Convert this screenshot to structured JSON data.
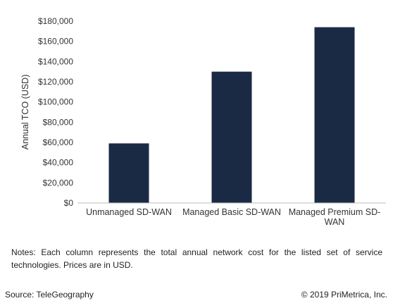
{
  "chart_data": {
    "type": "bar",
    "title": "",
    "xlabel": "",
    "ylabel": "Annual TCO (USD)",
    "ylim": [
      0,
      180000
    ],
    "yticks": [
      "$0",
      "$20,000",
      "$40,000",
      "$60,000",
      "$80,000",
      "$100,000",
      "$120,000",
      "$140,000",
      "$160,000",
      "$180,000"
    ],
    "categories": [
      [
        "Unmanaged SD-WAN"
      ],
      [
        "Managed Basic SD-WAN"
      ],
      [
        "Managed Premium SD-",
        "WAN"
      ]
    ],
    "values": [
      59000,
      130000,
      174000
    ],
    "bar_color": "#1b2a44",
    "grid": false
  },
  "notes": "Notes: Each column represents the total annual network cost for the listed set of service technologies. Prices are in USD.",
  "footer": {
    "source": "Source: TeleGeography",
    "copyright": "© 2019 PriMetrica, Inc."
  }
}
